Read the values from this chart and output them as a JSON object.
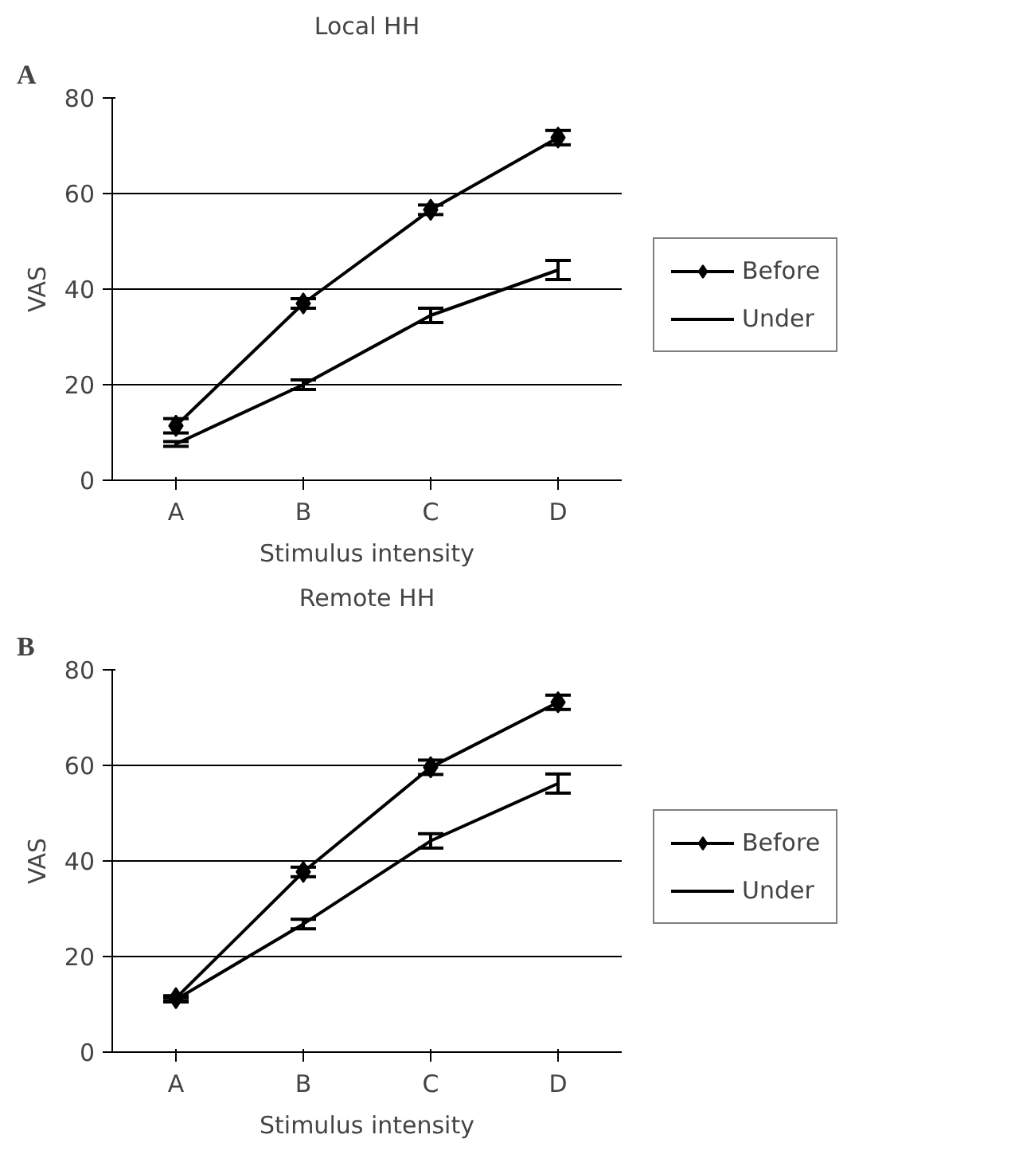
{
  "chart_data": [
    {
      "type": "line",
      "title": "Local HH",
      "annotations": [
        "A"
      ],
      "xlabel": "Stimulus intensity",
      "ylabel": "VAS",
      "categories": [
        "A",
        "B",
        "C",
        "D"
      ],
      "ylim": [
        0,
        80
      ],
      "yticks": [
        0,
        20,
        40,
        60,
        80
      ],
      "grid": "y",
      "legend": "right",
      "line_style": "solid",
      "series": [
        {
          "name": "Before",
          "color": "#000000",
          "marker": "diamond",
          "values": [
            11.4,
            37,
            56.6,
            71.7
          ],
          "errors": [
            1.5,
            1,
            1,
            1.5
          ]
        },
        {
          "name": "Under",
          "color": "#000000",
          "marker": "none",
          "values": [
            7.6,
            20,
            34.5,
            44
          ],
          "errors": [
            0.5,
            1,
            1.5,
            2
          ]
        }
      ]
    },
    {
      "type": "line",
      "title": "Remote HH",
      "annotations": [
        "B"
      ],
      "xlabel": "Stimulus intensity",
      "ylabel": "VAS",
      "categories": [
        "A",
        "B",
        "C",
        "D"
      ],
      "ylim": [
        0,
        80
      ],
      "yticks": [
        0,
        20,
        40,
        60,
        80
      ],
      "grid": "y",
      "legend": "right",
      "line_style": "solid",
      "series": [
        {
          "name": "Before",
          "color": "#000000",
          "marker": "diamond",
          "values": [
            11.3,
            37.7,
            59.6,
            73.2
          ],
          "errors": [
            0.5,
            1,
            1.5,
            1.5
          ]
        },
        {
          "name": "Under",
          "color": "#000000",
          "marker": "none",
          "values": [
            11,
            26.8,
            44.2,
            56.2
          ],
          "errors": [
            0.5,
            1,
            1.5,
            2
          ]
        }
      ]
    }
  ]
}
